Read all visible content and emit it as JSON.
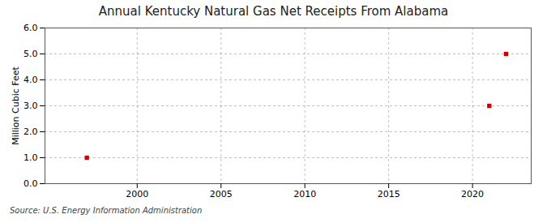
{
  "chart_data": {
    "type": "scatter",
    "title": "Annual Kentucky Natural Gas Net Receipts From Alabama",
    "ylabel": "Million Cubic Feet",
    "annotation": "Source: U.S. Energy Information Administration",
    "x": [
      1997,
      2021,
      2022
    ],
    "values": [
      1.0,
      3.0,
      5.0
    ],
    "color": "#cc0000",
    "marker": "square",
    "xlim": [
      1994.5,
      2023.5
    ],
    "xticks": [
      2000,
      2005,
      2010,
      2015,
      2020
    ],
    "ylim": [
      0.0,
      6.0
    ],
    "yticks": [
      {
        "value": 0.0,
        "label": "0.0"
      },
      {
        "value": 1.0,
        "label": "1.0"
      },
      {
        "value": 2.0,
        "label": "2.0"
      },
      {
        "value": 3.0,
        "label": "3.0"
      },
      {
        "value": 4.0,
        "label": "4.0"
      },
      {
        "value": 5.0,
        "label": "5.0"
      },
      {
        "value": 6.0,
        "label": "6.0"
      }
    ],
    "grid": true
  }
}
